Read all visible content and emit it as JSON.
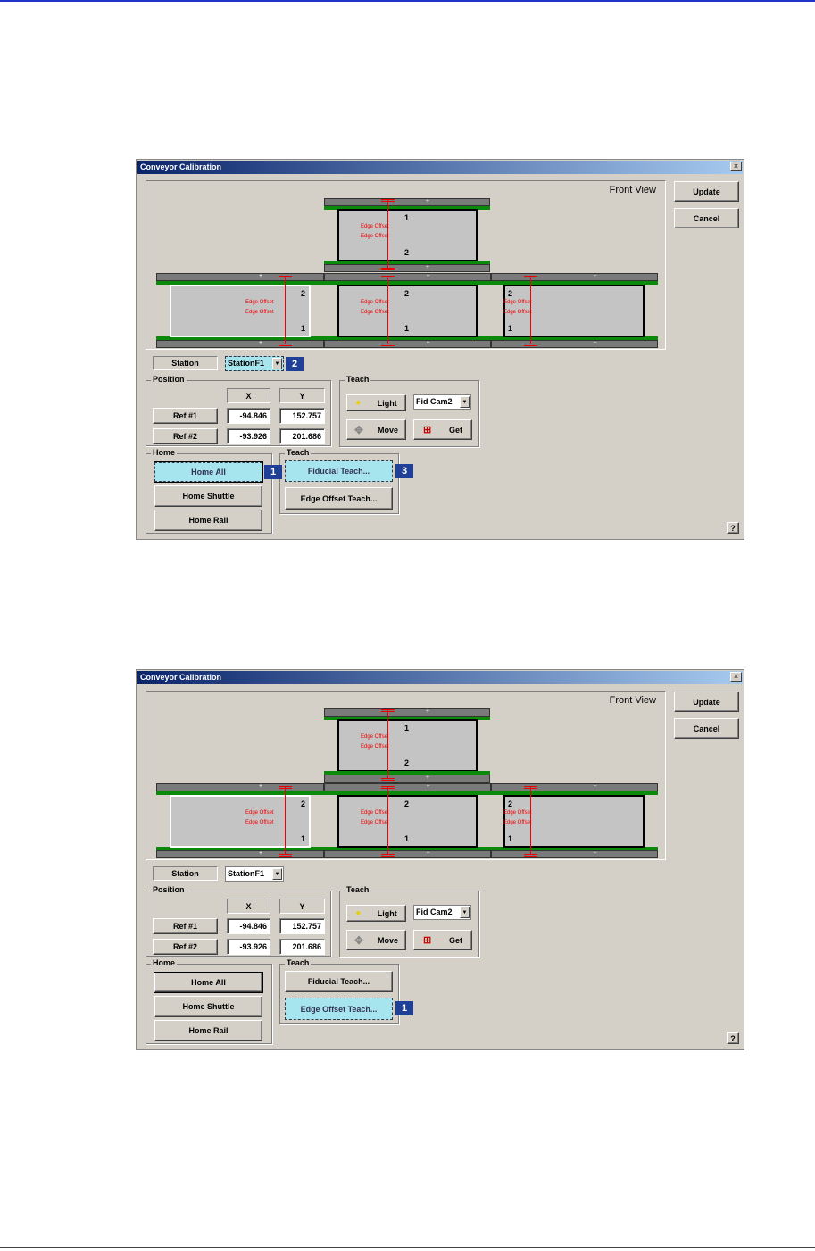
{
  "dialogs": [
    {
      "title": "Conveyor Calibration",
      "close": "×",
      "view_label": "Front View",
      "update": "Update",
      "cancel": "Cancel",
      "station_label": "Station",
      "station_value": "StationF1",
      "position": {
        "title": "Position",
        "x_header": "X",
        "y_header": "Y",
        "ref1": "Ref #1",
        "ref2": "Ref #2",
        "ref1_x": "-94.846",
        "ref1_y": "152.757",
        "ref2_x": "-93.926",
        "ref2_y": "201.686"
      },
      "teach_top": {
        "title": "Teach",
        "light": "Light",
        "camera": "Fid Cam2",
        "move": "Move",
        "get": "Get"
      },
      "home": {
        "title": "Home",
        "home_all": "Home All",
        "home_shuttle": "Home Shuttle",
        "home_rail": "Home Rail"
      },
      "teach_bottom": {
        "title": "Teach",
        "fiducial": "Fiducial Teach...",
        "edge_offset": "Edge Offset Teach..."
      },
      "help": "?",
      "edge_offset_text": "Edge Offset",
      "n1": "1",
      "n2": "2",
      "highlight": [
        "station",
        "home_all",
        "fiducial"
      ],
      "badges": {
        "home_all": "1",
        "station": "2",
        "fiducial": "3"
      }
    },
    {
      "title": "Conveyor Calibration",
      "close": "×",
      "view_label": "Front View",
      "update": "Update",
      "cancel": "Cancel",
      "station_label": "Station",
      "station_value": "StationF1",
      "position": {
        "title": "Position",
        "x_header": "X",
        "y_header": "Y",
        "ref1": "Ref #1",
        "ref2": "Ref #2",
        "ref1_x": "-94.846",
        "ref1_y": "152.757",
        "ref2_x": "-93.926",
        "ref2_y": "201.686"
      },
      "teach_top": {
        "title": "Teach",
        "light": "Light",
        "camera": "Fid Cam2",
        "move": "Move",
        "get": "Get"
      },
      "home": {
        "title": "Home",
        "home_all": "Home All",
        "home_shuttle": "Home Shuttle",
        "home_rail": "Home Rail"
      },
      "teach_bottom": {
        "title": "Teach",
        "fiducial": "Fiducial Teach...",
        "edge_offset": "Edge Offset Teach..."
      },
      "help": "?",
      "edge_offset_text": "Edge Offset",
      "n1": "1",
      "n2": "2",
      "highlight": [
        "edge_offset"
      ],
      "badges": {
        "edge_offset": "1"
      }
    }
  ],
  "colors": {
    "highlight": "#a6e4ee",
    "badge": "#1f3f99",
    "edge_offset": "#ee0000",
    "rail_green": "#0a8a0a"
  }
}
